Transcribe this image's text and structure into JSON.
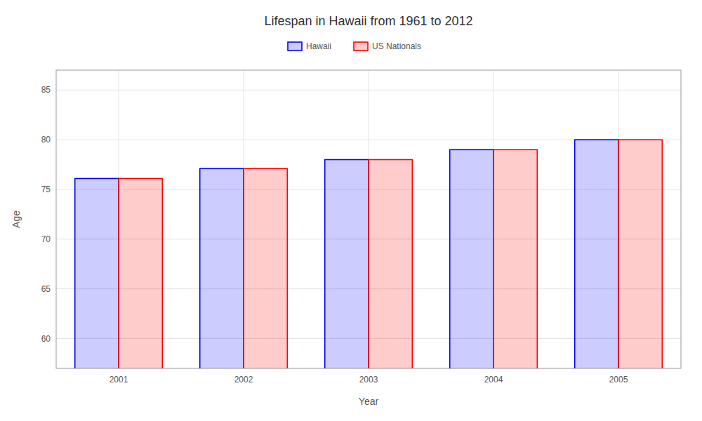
{
  "chart_data": {
    "type": "bar",
    "title": "Lifespan in Hawaii from 1961 to 2012",
    "x_label": "Year",
    "y_label": "Age",
    "categories": [
      "2001",
      "2002",
      "2003",
      "2004",
      "2005"
    ],
    "series": [
      {
        "name": "Hawaii",
        "color": "#0000ff",
        "values": [
          76.1,
          77.1,
          78.0,
          79.0,
          80.0
        ]
      },
      {
        "name": "US Nationals",
        "color": "#ff0000",
        "values": [
          76.1,
          77.1,
          78.0,
          79.0,
          80.0
        ]
      }
    ],
    "ylim": [
      57,
      87
    ],
    "yticks": [
      60,
      65,
      70,
      75,
      80,
      85
    ],
    "grid": true,
    "legend": "top"
  }
}
